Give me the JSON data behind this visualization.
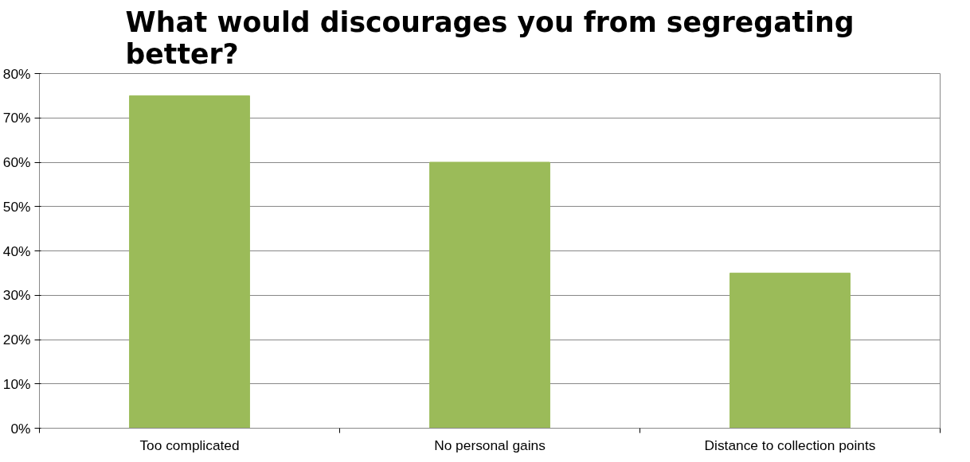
{
  "chart_data": {
    "type": "bar",
    "title": "What would discourages you from segregating better?",
    "categories": [
      "Too complicated",
      "No personal gains",
      "Distance to collection points"
    ],
    "series": [
      {
        "color": "#9bbb59",
        "values": [
          75,
          60,
          35
        ]
      }
    ],
    "ylim": [
      0,
      80
    ],
    "yticks": [
      {
        "value": 0,
        "label": "0%"
      },
      {
        "value": 10,
        "label": "10%"
      },
      {
        "value": 20,
        "label": "20%"
      },
      {
        "value": 30,
        "label": "30%"
      },
      {
        "value": 40,
        "label": "40%"
      },
      {
        "value": 50,
        "label": "50%"
      },
      {
        "value": 60,
        "label": "60%"
      },
      {
        "value": 70,
        "label": "70%"
      },
      {
        "value": 80,
        "label": "80%"
      }
    ],
    "grid": "y"
  }
}
